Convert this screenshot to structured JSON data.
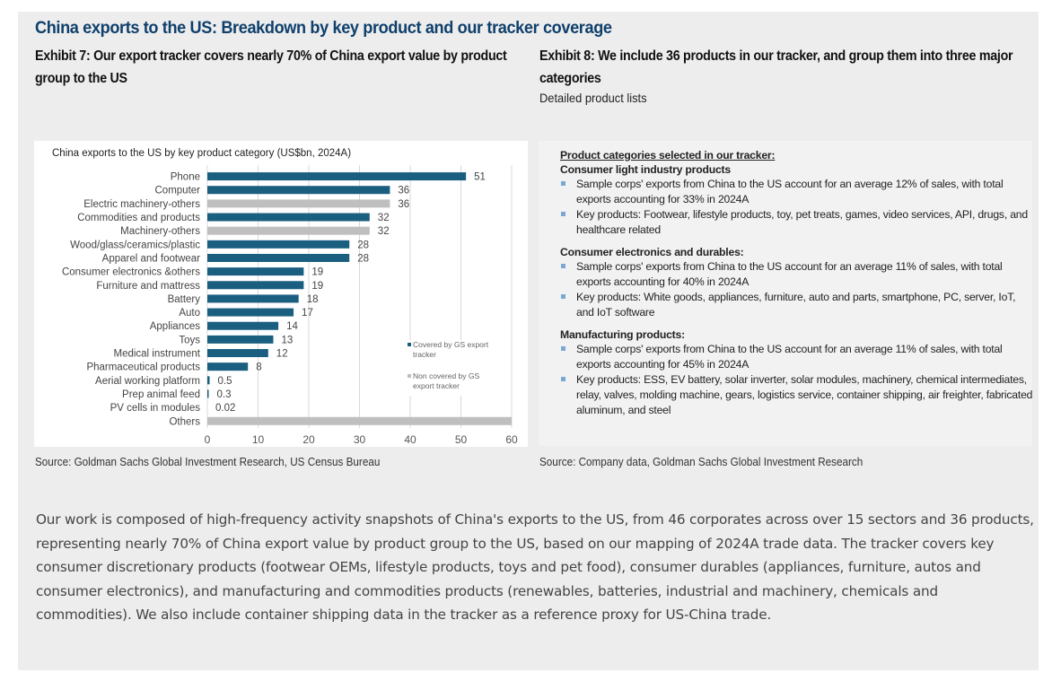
{
  "header": {
    "title": "China exports to the US: Breakdown by key product and our tracker coverage"
  },
  "exhibit7": {
    "title": "Exhibit 7: Our export tracker covers nearly 70% of China export value by product group to the US",
    "source": "Source: Goldman Sachs Global Investment Research, US Census Bureau"
  },
  "exhibit8": {
    "title": "Exhibit 8: We include 36 products in our tracker, and group them into three major categories",
    "subtitle": "Detailed product lists",
    "heading": "Product categories selected in our tracker:",
    "categories": [
      {
        "title": "Consumer light industry products",
        "bullets": [
          "Sample corps' exports from China to the US account for an average 12% of sales, with total exports accounting for 33% in 2024A",
          "Key products: Footwear, lifestyle products, toy, pet treats, games, video services, API, drugs, and healthcare related"
        ]
      },
      {
        "title": "Consumer electronics and durables:",
        "bullets": [
          "Sample corps' exports from China to the US account for an average 11% of sales, with total exports accounting for 40% in 2024A",
          "Key products: White goods, appliances, furniture, auto and parts, smartphone, PC, server, IoT, and IoT software"
        ]
      },
      {
        "title": "Manufacturing products:",
        "bullets": [
          "Sample corps' exports from China to the US account for an average 11% of sales, with total exports accounting for 45% in 2024A",
          "Key products: ESS, EV battery, solar inverter, solar modules, machinery, chemical intermediates, relay, valves, molding machine, gears, logistics service, container shipping, air freighter, fabricated aluminum, and steel"
        ]
      }
    ],
    "source": "Source: Company data, Goldman Sachs Global Investment Research"
  },
  "body": {
    "paragraph": "Our work is composed of high-frequency activity snapshots of China's exports to the US, from 46 corporates across over 15 sectors and 36 products, representing nearly 70% of China export value by product group to the US, based on our mapping of 2024A trade data. The tracker covers key consumer discretionary products (footwear OEMs, lifestyle products, toys and pet food), consumer durables (appliances, furniture, autos and consumer electronics), and manufacturing and commodities products (renewables, batteries, industrial and machinery, chemicals and commodities). We also include container shipping data in the tracker as a reference proxy for US-China trade."
  },
  "colors": {
    "covered": "#1a5e80",
    "not_covered": "#bfbfbf",
    "title_blue": "#0f3f6b",
    "bullet": "#7aa7d6"
  },
  "chart_data": {
    "type": "bar",
    "orientation": "horizontal",
    "title": "China exports to the US by key product category (US$bn, 2024A)",
    "xlabel": "",
    "ylabel": "",
    "xlim": [
      0,
      60
    ],
    "xticks": [
      0,
      10,
      20,
      30,
      40,
      50,
      60
    ],
    "grid": true,
    "legend_position": "right",
    "series": [
      {
        "name": "Covered by GS export tracker",
        "color": "#1a5e80"
      },
      {
        "name": "Non covered by GS export tracker",
        "color": "#bfbfbf"
      }
    ],
    "categories": [
      "Phone",
      "Computer",
      "Electric machinery-others",
      "Commodities and products",
      "Machinery-others",
      "Wood/glass/ceramics/plastic",
      "Apparel and footwear",
      "Consumer electronics &others",
      "Furniture and mattress",
      "Battery",
      "Auto",
      "Appliances",
      "Toys",
      "Medical instrument",
      "Pharmaceutical products",
      "Aerial working platform",
      "Prep animal feed",
      "PV cells in modules",
      "Others"
    ],
    "values": [
      51,
      36,
      36,
      32,
      32,
      28,
      28,
      19,
      19,
      18,
      17,
      14,
      13,
      12,
      8,
      0.5,
      0.3,
      0.02,
      60
    ],
    "value_labels": [
      "51",
      "36",
      "36",
      "32",
      "32",
      "28",
      "28",
      "19",
      "19",
      "18",
      "17",
      "14",
      "13",
      "12",
      "8",
      "0.5",
      "0.3",
      "0.02",
      ""
    ],
    "covered": [
      true,
      true,
      false,
      true,
      false,
      true,
      true,
      true,
      true,
      true,
      true,
      true,
      true,
      true,
      true,
      true,
      true,
      true,
      false
    ]
  }
}
